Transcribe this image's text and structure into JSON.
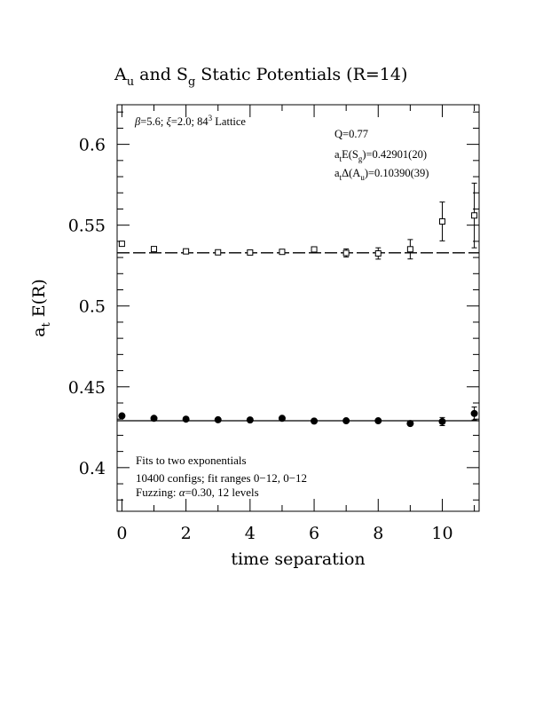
{
  "chart_data": {
    "type": "scatter",
    "title": {
      "main_a": "A",
      "main_a_sub": "u",
      "main_and": " and  S",
      "main_s_sub": "g",
      "main_rest": "  Static Potentials (R=14)"
    },
    "xlabel": "time separation",
    "ylabel": {
      "base": "a",
      "sub": "t",
      "rest": " E(R)"
    },
    "xlim": [
      -0.15,
      11.15
    ],
    "ylim": [
      0.373,
      0.6245
    ],
    "xticks": [
      0,
      2,
      4,
      6,
      8,
      10
    ],
    "xtick_labels": [
      "0",
      "2",
      "4",
      "6",
      "8",
      "10"
    ],
    "yticks": [
      0.4,
      0.45,
      0.5,
      0.55,
      0.6
    ],
    "ytick_labels": [
      "0.4",
      "0.45",
      "0.5",
      "0.55",
      "0.6"
    ],
    "grid": false,
    "annotations": {
      "lattice": "β=5.6; ξ=2.0; 8⁴3 Lattice",
      "lattice_beta": "β",
      "lattice_mid": "=5.6; ",
      "lattice_xi": "ξ",
      "lattice_end1": "=2.0; 84",
      "lattice_sup": "3",
      "lattice_end2": " Lattice",
      "q": "Q=0.77",
      "fit1_prefix": "a",
      "fit1_sub": "t",
      "fit1_mid": "E(S",
      "fit1_sub2": "g",
      "fit1_end": ")=0.42901(20)",
      "fit2_prefix": "a",
      "fit2_sub": "t",
      "fit2_mid": "Δ(A",
      "fit2_sub2": "u",
      "fit2_end": ")=0.10390(39)",
      "note1": "Fits to two exponentials",
      "note2": "10400 configs; fit ranges 0−12, 0−12",
      "note3_a": "Fuzzing: ",
      "note3_alpha": "α",
      "note3_b": "=0.30, 12 levels"
    },
    "series": [
      {
        "marker": "open-square",
        "x": [
          0,
          1,
          2,
          3,
          4,
          5,
          6,
          7,
          8,
          9,
          10,
          11
        ],
        "y": [
          0.5385,
          0.5352,
          0.5338,
          0.5332,
          0.5331,
          0.5335,
          0.535,
          0.5328,
          0.5325,
          0.5351,
          0.5523,
          0.556
        ],
        "err": [
          0.0008,
          0.0008,
          0.0008,
          0.0008,
          0.0008,
          0.0009,
          0.0012,
          0.0025,
          0.0035,
          0.006,
          0.012,
          0.02
        ],
        "fit": 0.5329,
        "fit_style": "dashed"
      },
      {
        "marker": "filled-circle",
        "x": [
          0,
          1,
          2,
          3,
          4,
          5,
          6,
          7,
          8,
          9,
          10,
          11
        ],
        "y": [
          0.432,
          0.4305,
          0.43,
          0.4296,
          0.4295,
          0.4305,
          0.4288,
          0.429,
          0.429,
          0.4273,
          0.4285,
          0.4335
        ],
        "err": [
          0.0006,
          0.0006,
          0.0006,
          0.0006,
          0.0006,
          0.0006,
          0.0007,
          0.0008,
          0.001,
          0.0012,
          0.0025,
          0.004
        ],
        "fit": 0.42901,
        "fit_style": "solid"
      }
    ]
  }
}
